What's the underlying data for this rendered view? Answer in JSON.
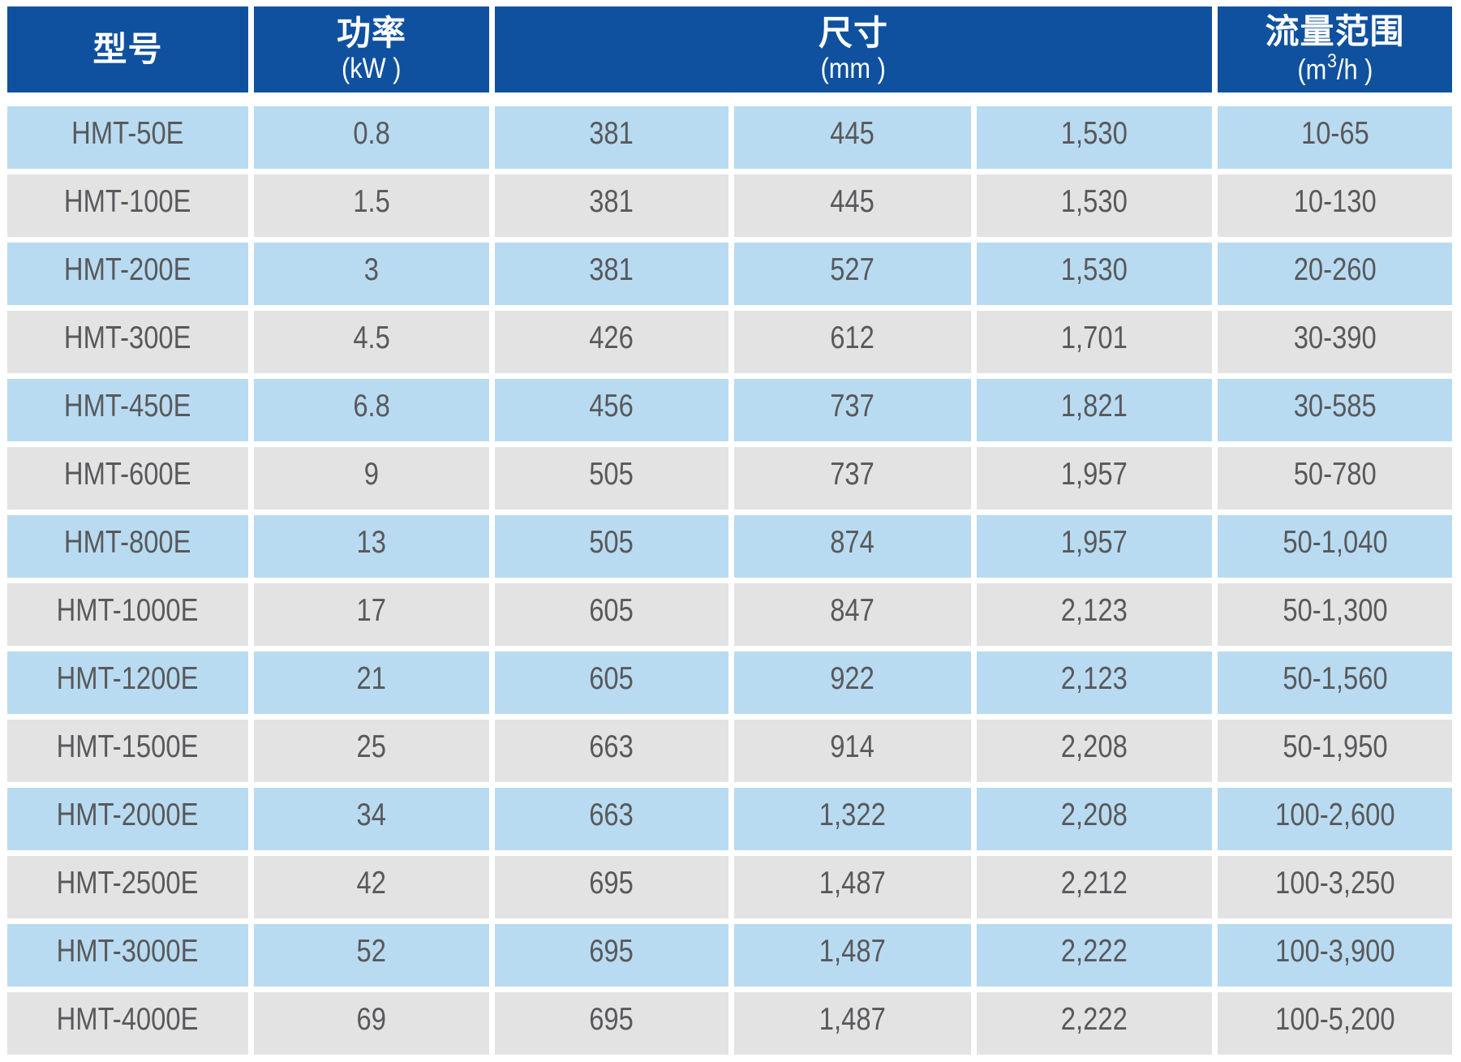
{
  "table": {
    "headers": {
      "model": "型号",
      "power_title": "功率",
      "power_unit": "(kW )",
      "size_title": "尺寸",
      "size_unit": "(mm )",
      "flow_title": "流量范围",
      "flow_unit_prefix": "(m",
      "flow_unit_sup": "3",
      "flow_unit_suffix": "/h )"
    },
    "rows": [
      {
        "model": "HMT-50E",
        "power": "0.8",
        "dim_a": "381",
        "dim_b": "445",
        "dim_c": "1,530",
        "flow": "10-65"
      },
      {
        "model": "HMT-100E",
        "power": "1.5",
        "dim_a": "381",
        "dim_b": "445",
        "dim_c": "1,530",
        "flow": "10-130"
      },
      {
        "model": "HMT-200E",
        "power": "3",
        "dim_a": "381",
        "dim_b": "527",
        "dim_c": "1,530",
        "flow": "20-260"
      },
      {
        "model": "HMT-300E",
        "power": "4.5",
        "dim_a": "426",
        "dim_b": "612",
        "dim_c": "1,701",
        "flow": "30-390"
      },
      {
        "model": "HMT-450E",
        "power": "6.8",
        "dim_a": "456",
        "dim_b": "737",
        "dim_c": "1,821",
        "flow": "30-585"
      },
      {
        "model": "HMT-600E",
        "power": "9",
        "dim_a": "505",
        "dim_b": "737",
        "dim_c": "1,957",
        "flow": "50-780"
      },
      {
        "model": "HMT-800E",
        "power": "13",
        "dim_a": "505",
        "dim_b": "874",
        "dim_c": "1,957",
        "flow": "50-1,040"
      },
      {
        "model": "HMT-1000E",
        "power": "17",
        "dim_a": "605",
        "dim_b": "847",
        "dim_c": "2,123",
        "flow": "50-1,300"
      },
      {
        "model": "HMT-1200E",
        "power": "21",
        "dim_a": "605",
        "dim_b": "922",
        "dim_c": "2,123",
        "flow": "50-1,560"
      },
      {
        "model": "HMT-1500E",
        "power": "25",
        "dim_a": "663",
        "dim_b": "914",
        "dim_c": "2,208",
        "flow": "50-1,950"
      },
      {
        "model": "HMT-2000E",
        "power": "34",
        "dim_a": "663",
        "dim_b": "1,322",
        "dim_c": "2,208",
        "flow": "100-2,600"
      },
      {
        "model": "HMT-2500E",
        "power": "42",
        "dim_a": "695",
        "dim_b": "1,487",
        "dim_c": "2,212",
        "flow": "100-3,250"
      },
      {
        "model": "HMT-3000E",
        "power": "52",
        "dim_a": "695",
        "dim_b": "1,487",
        "dim_c": "2,222",
        "flow": "100-3,900"
      },
      {
        "model": "HMT-4000E",
        "power": "69",
        "dim_a": "695",
        "dim_b": "1,487",
        "dim_c": "2,222",
        "flow": "100-5,200"
      }
    ]
  },
  "colors": {
    "header_background": "#10519F",
    "header_text": "#FFFFFF",
    "row_blue": "#B9DBF1",
    "row_gray": "#E3E3E4",
    "cell_text": "#58595B",
    "gap": "#FFFFFF"
  }
}
